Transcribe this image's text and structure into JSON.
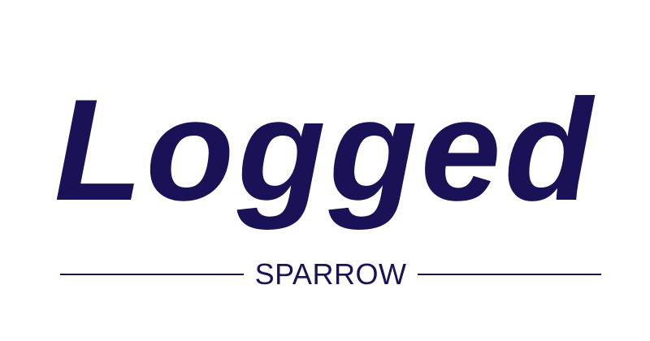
{
  "logo": {
    "wordmark": "Logged",
    "tagline": "SPARROW"
  },
  "colors": {
    "brand": "#1a1256",
    "background": "#ffffff"
  }
}
